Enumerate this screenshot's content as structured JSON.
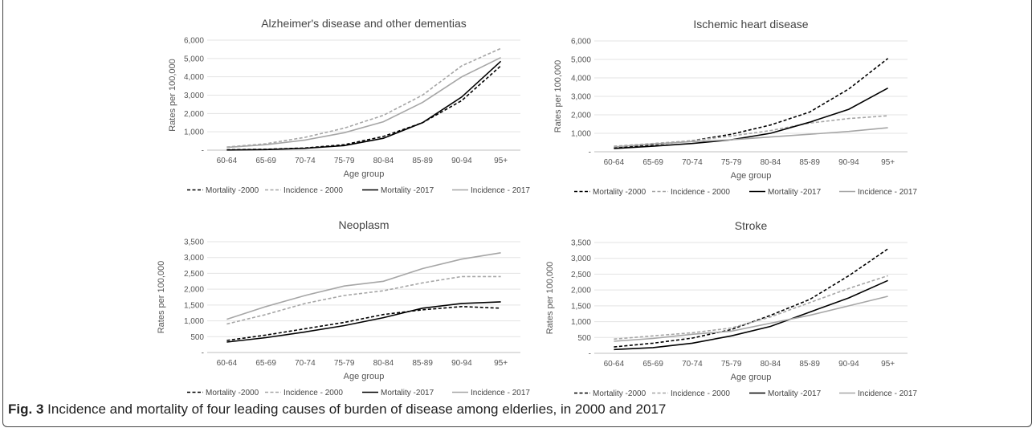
{
  "caption": {
    "label": "Fig. 3",
    "text": "Incidence and mortality of four leading causes of burden of disease among elderlies, in 2000 and 2017"
  },
  "series_styles": [
    {
      "color": "#000000",
      "dash": "dashed"
    },
    {
      "color": "#a6a6a6",
      "dash": "dashed"
    },
    {
      "color": "#000000",
      "dash": "solid"
    },
    {
      "color": "#a6a6a6",
      "dash": "solid"
    }
  ],
  "chart_data": [
    {
      "type": "line",
      "title": "Alzheimer's disease and other dementias",
      "xlabel": "Age group",
      "ylabel": "Rates per 100,000",
      "ylim": [
        0,
        6000
      ],
      "yticks": [
        "-",
        "1,000",
        "2,000",
        "3,000",
        "4,000",
        "5,000",
        "6,000"
      ],
      "categories": [
        "60-64",
        "65-69",
        "70-74",
        "75-79",
        "80-84",
        "85-89",
        "90-94",
        "95+"
      ],
      "legend_position": "bottom",
      "series": [
        {
          "name": "Mortality -2000",
          "values": [
            20,
            50,
            120,
            300,
            750,
            1500,
            2700,
            4600
          ]
        },
        {
          "name": "Incidence - 2000",
          "values": [
            170,
            350,
            700,
            1200,
            1900,
            3000,
            4600,
            5550
          ]
        },
        {
          "name": "Mortality -2017",
          "values": [
            10,
            30,
            100,
            250,
            650,
            1500,
            2900,
            4850
          ]
        },
        {
          "name": "Incidence - 2017",
          "values": [
            150,
            300,
            550,
            950,
            1550,
            2600,
            4000,
            5050
          ]
        }
      ]
    },
    {
      "type": "line",
      "title": "Ischemic heart disease",
      "xlabel": "Age group",
      "ylabel": "Rates per 100,000",
      "ylim": [
        0,
        6000
      ],
      "yticks": [
        "-",
        "1,000",
        "2,000",
        "3,000",
        "4,000",
        "5,000",
        "6,000"
      ],
      "categories": [
        "60-64",
        "65-69",
        "70-74",
        "75-79",
        "80-84",
        "85-89",
        "90-94",
        "95+"
      ],
      "legend_position": "bottom",
      "series": [
        {
          "name": "Mortality -2000",
          "values": [
            220,
            380,
            600,
            950,
            1450,
            2150,
            3400,
            5050
          ]
        },
        {
          "name": "Incidence - 2000",
          "values": [
            300,
            450,
            600,
            850,
            1150,
            1550,
            1800,
            1950
          ]
        },
        {
          "name": "Mortality -2017",
          "values": [
            180,
            300,
            450,
            650,
            1000,
            1600,
            2300,
            3450
          ]
        },
        {
          "name": "Incidence - 2017",
          "values": [
            260,
            420,
            550,
            650,
            800,
            950,
            1100,
            1300
          ]
        }
      ]
    },
    {
      "type": "line",
      "title": "Neoplasm",
      "xlabel": "Age group",
      "ylabel": "Rates per 100,000",
      "ylim": [
        0,
        3500
      ],
      "yticks": [
        "-",
        "500",
        "1,000",
        "1,500",
        "2,000",
        "2,500",
        "3,000",
        "3,500"
      ],
      "categories": [
        "60-64",
        "65-69",
        "70-74",
        "75-79",
        "80-84",
        "85-89",
        "90-94",
        "95+"
      ],
      "legend_position": "bottom",
      "series": [
        {
          "name": "Mortality -2000",
          "values": [
            380,
            550,
            750,
            950,
            1200,
            1350,
            1450,
            1400
          ]
        },
        {
          "name": "Incidence - 2000",
          "values": [
            900,
            1200,
            1550,
            1800,
            1950,
            2200,
            2400,
            2400
          ]
        },
        {
          "name": "Mortality -2017",
          "values": [
            330,
            470,
            650,
            850,
            1100,
            1400,
            1550,
            1600
          ]
        },
        {
          "name": "Incidence - 2017",
          "values": [
            1050,
            1450,
            1800,
            2100,
            2250,
            2650,
            2950,
            3150
          ]
        }
      ]
    },
    {
      "type": "line",
      "title": "Stroke",
      "xlabel": "Age group",
      "ylabel": "Rates per 100,000",
      "ylim": [
        0,
        3500
      ],
      "yticks": [
        "-",
        "500",
        "1,000",
        "1,500",
        "2,000",
        "2,500",
        "3,000",
        "3,500"
      ],
      "categories": [
        "60-64",
        "65-69",
        "70-74",
        "75-79",
        "80-84",
        "85-89",
        "90-94",
        "95+"
      ],
      "legend_position": "bottom",
      "series": [
        {
          "name": "Mortality -2000",
          "values": [
            200,
            320,
            480,
            750,
            1200,
            1700,
            2450,
            3300
          ]
        },
        {
          "name": "Incidence - 2000",
          "values": [
            450,
            550,
            650,
            800,
            1150,
            1600,
            2050,
            2450
          ]
        },
        {
          "name": "Mortality -2017",
          "values": [
            120,
            180,
            320,
            550,
            850,
            1300,
            1750,
            2300
          ]
        },
        {
          "name": "Incidence - 2017",
          "values": [
            380,
            470,
            600,
            700,
            950,
            1200,
            1500,
            1800
          ]
        }
      ]
    }
  ]
}
